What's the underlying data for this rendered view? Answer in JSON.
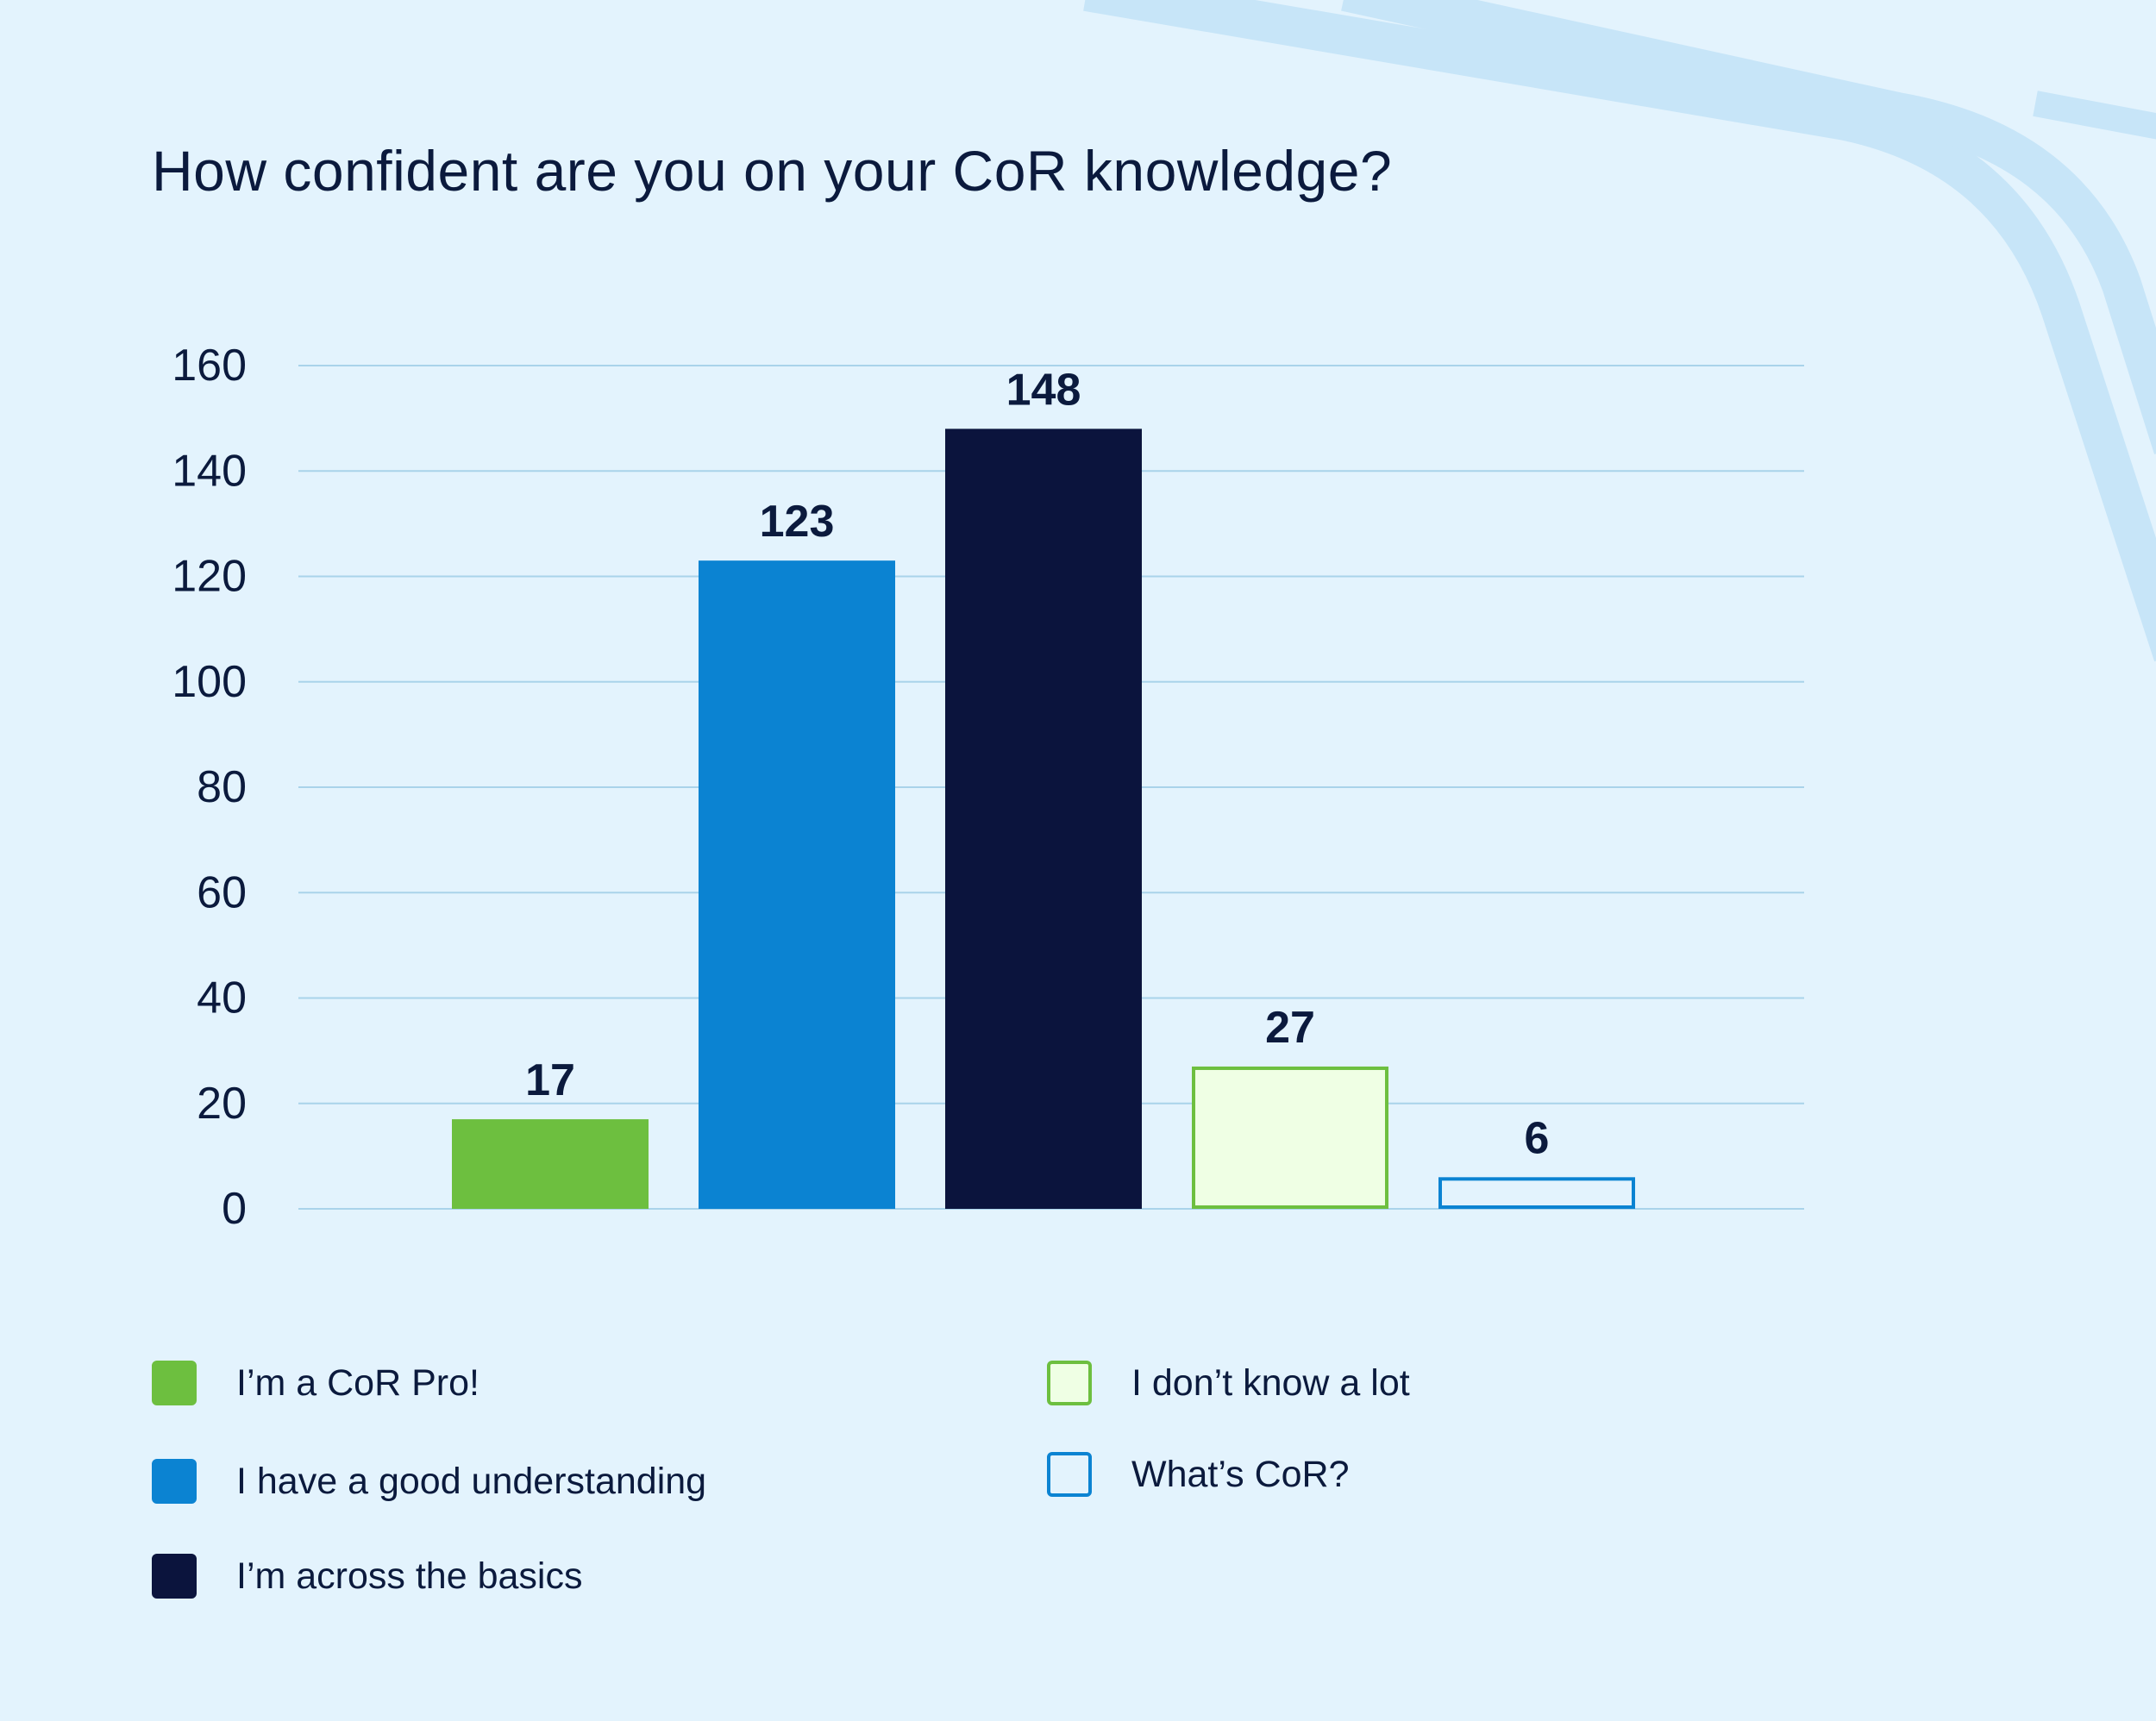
{
  "chart_data": {
    "type": "bar",
    "title": "How confident are you on your CoR knowledge?",
    "categories": [
      "I’m a CoR Pro!",
      "I have a good understanding",
      "I’m across the basics",
      "I don’t know a lot",
      "What’s CoR?"
    ],
    "values": [
      17,
      123,
      148,
      27,
      6
    ],
    "data_labels": [
      "17",
      "123",
      "148",
      "27",
      "6"
    ],
    "ylim": [
      0,
      160
    ],
    "y_ticks": [
      0,
      20,
      40,
      60,
      80,
      100,
      120,
      140,
      160
    ],
    "xlabel": "",
    "ylabel": "",
    "grid": true,
    "legend_placement": "bottom",
    "bar_fills": [
      "#6dbf3f",
      "#0b83d2",
      "#0b143d",
      "#efffe4",
      "#e3f3fd"
    ],
    "bar_strokes": [
      "none",
      "none",
      "none",
      "#6dbf3f",
      "#0b83d2"
    ]
  },
  "colors": {
    "background": "#e3f3fd",
    "gridline": "#a9d3ea",
    "text": "#0b1a3d",
    "decoration": "#c7e5f8"
  },
  "legend": {
    "items": [
      {
        "label": "I’m a CoR Pro!",
        "fill": "#6dbf3f",
        "stroke": "#6dbf3f"
      },
      {
        "label": "I have a good understanding",
        "fill": "#0b83d2",
        "stroke": "#0b83d2"
      },
      {
        "label": "I’m across the basics",
        "fill": "#0b143d",
        "stroke": "#0b143d"
      },
      {
        "label": "I don’t know a lot",
        "fill": "#efffe4",
        "stroke": "#6dbf3f"
      },
      {
        "label": "What’s CoR?",
        "fill": "#e3f3fd",
        "stroke": "#0b83d2"
      }
    ]
  }
}
